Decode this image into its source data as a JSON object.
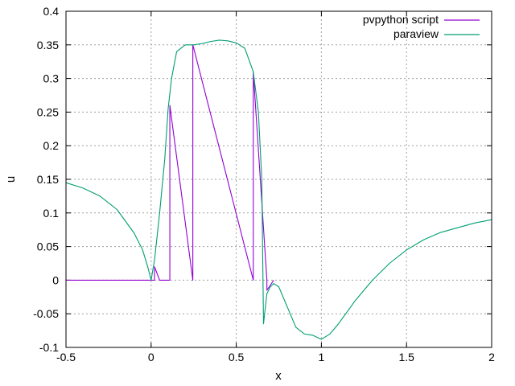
{
  "chart_data": {
    "type": "line",
    "xlabel": "x",
    "ylabel": "u",
    "xlim": [
      -0.5,
      2
    ],
    "ylim": [
      -0.1,
      0.4
    ],
    "grid": true,
    "legend_position": "top-right",
    "x_ticks": [
      -0.5,
      0,
      0.5,
      1,
      1.5,
      2
    ],
    "x_tick_labels": [
      "-0.5",
      "0",
      "0.5",
      "1",
      "1.5",
      "2"
    ],
    "y_ticks": [
      -0.1,
      -0.05,
      0,
      0.05,
      0.1,
      0.15,
      0.2,
      0.25,
      0.3,
      0.35,
      0.4
    ],
    "y_tick_labels": [
      "-0.1",
      "-0.05",
      "0",
      "0.05",
      "0.1",
      "0.15",
      "0.2",
      "0.25",
      "0.3",
      "0.35",
      "0.4"
    ],
    "series": [
      {
        "name": "pvpython script",
        "color": "#9400d3",
        "x": [
          -0.5,
          0.02,
          0.02,
          0.05,
          0.08,
          0.08,
          0.11,
          0.11,
          0.245,
          0.245,
          0.6,
          0.6,
          0.68,
          0.68,
          0.72,
          0.72
        ],
        "y": [
          0,
          0,
          0.02,
          0.0,
          0.0,
          0.0,
          0.0,
          0.26,
          0.0,
          0.35,
          0.0,
          0.31,
          0.0,
          -0.015,
          0.0,
          0.0
        ]
      },
      {
        "name": "paraview",
        "color": "#009e73",
        "x": [
          -0.5,
          -0.4,
          -0.3,
          -0.2,
          -0.1,
          -0.05,
          -0.02,
          0.0,
          0.02,
          0.05,
          0.08,
          0.1,
          0.12,
          0.15,
          0.2,
          0.25,
          0.3,
          0.35,
          0.4,
          0.45,
          0.5,
          0.55,
          0.6,
          0.63,
          0.65,
          0.66,
          0.68,
          0.7,
          0.72,
          0.75,
          0.8,
          0.85,
          0.9,
          0.95,
          1.0,
          1.05,
          1.1,
          1.2,
          1.3,
          1.4,
          1.5,
          1.6,
          1.7,
          1.8,
          1.9,
          2.0
        ],
        "y": [
          0.145,
          0.137,
          0.125,
          0.105,
          0.07,
          0.045,
          0.02,
          0.0,
          0.03,
          0.1,
          0.18,
          0.255,
          0.3,
          0.34,
          0.35,
          0.35,
          0.352,
          0.355,
          0.357,
          0.356,
          0.353,
          0.345,
          0.31,
          0.25,
          0.15,
          -0.065,
          -0.02,
          -0.01,
          -0.005,
          -0.01,
          -0.04,
          -0.07,
          -0.08,
          -0.082,
          -0.088,
          -0.08,
          -0.065,
          -0.03,
          0.0,
          0.025,
          0.045,
          0.06,
          0.071,
          0.078,
          0.085,
          0.09
        ]
      }
    ]
  }
}
